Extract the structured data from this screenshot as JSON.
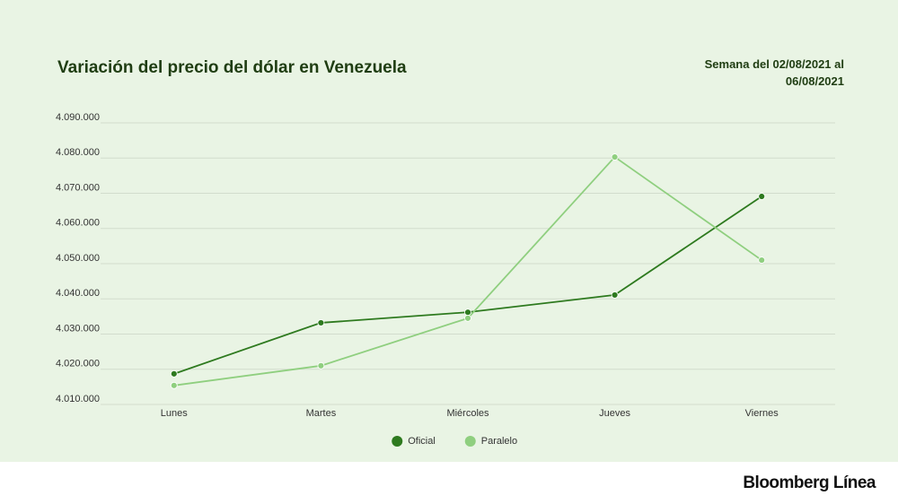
{
  "chart_data": {
    "type": "line",
    "title": "Variación del precio del dólar en Venezuela",
    "subtitle": "Semana del 02/08/2021 al 06/08/2021",
    "categories": [
      "Lunes",
      "Martes",
      "Miércoles",
      "Jueves",
      "Viernes"
    ],
    "series": [
      {
        "name": "Oficial",
        "color": "#2e7a1f",
        "values": [
          4018700,
          4033200,
          4036200,
          4041100,
          4069100
        ]
      },
      {
        "name": "Paralelo",
        "color": "#8fcf7f",
        "values": [
          4015400,
          4021000,
          4034500,
          4080300,
          4051000
        ]
      }
    ],
    "ylim": [
      4010000,
      4090000
    ],
    "yticks": [
      {
        "value": 4010000,
        "label": "4.010.000"
      },
      {
        "value": 4020000,
        "label": "4.020.000"
      },
      {
        "value": 4030000,
        "label": "4.030.000"
      },
      {
        "value": 4040000,
        "label": "4.040.000"
      },
      {
        "value": 4050000,
        "label": "4.050.000"
      },
      {
        "value": 4060000,
        "label": "4.060.000"
      },
      {
        "value": 4070000,
        "label": "4.070.000"
      },
      {
        "value": 4080000,
        "label": "4.080.000"
      },
      {
        "value": 4090000,
        "label": "4.090.000"
      }
    ],
    "grid": true,
    "legend": "bottom"
  },
  "footer": {
    "logo": "Bloomberg Línea"
  }
}
